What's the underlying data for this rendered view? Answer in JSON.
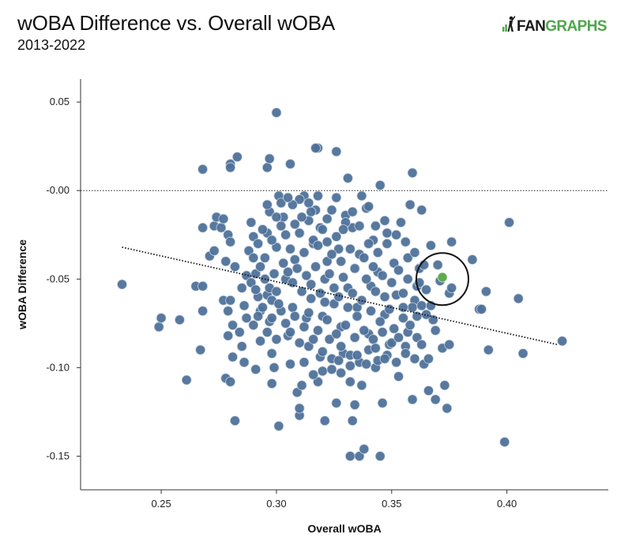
{
  "header": {
    "title": "wOBA Difference vs. Overall wOBA",
    "subtitle": "2013-2022",
    "logo_text_a": "FAN",
    "logo_text_b": "GRAPHS"
  },
  "colors": {
    "point": "#4f7199",
    "point_stroke": "#c9d6e4",
    "highlight": "#5eaa4f",
    "axis": "#333333",
    "logo_green": "#4ea64a"
  },
  "chart_data": {
    "type": "scatter",
    "title": "wOBA Difference vs. Overall wOBA",
    "subtitle": "2013-2022",
    "xlabel": "Overall wOBA",
    "ylabel": "wOBA Difference",
    "xlim": [
      0.215,
      0.444
    ],
    "ylim": [
      -0.169,
      0.063
    ],
    "x_ticks": [
      0.25,
      0.3,
      0.35,
      0.4
    ],
    "x_tick_labels": [
      "0.25",
      "0.30",
      "0.35",
      "0.40"
    ],
    "y_ticks": [
      0.05,
      0.0,
      -0.05,
      -0.1,
      -0.15
    ],
    "y_tick_labels": [
      "0.05",
      "-0.00",
      "-0.05",
      "-0.10",
      "-0.15"
    ],
    "reference_line_y": 0.0,
    "trend_line": {
      "x": [
        0.233,
        0.422
      ],
      "y": [
        -0.032,
        -0.087
      ]
    },
    "highlight_point": {
      "x": 0.372,
      "y": -0.049
    },
    "highlight_circle_center": {
      "x": 0.372,
      "y": -0.05
    },
    "grid": false,
    "points": [
      [
        0.3,
        0.044
      ],
      [
        0.318,
        0.024
      ],
      [
        0.317,
        0.024
      ],
      [
        0.326,
        0.022
      ],
      [
        0.268,
        0.012
      ],
      [
        0.28,
        0.015
      ],
      [
        0.28,
        0.013
      ],
      [
        0.283,
        0.019
      ],
      [
        0.296,
        0.013
      ],
      [
        0.306,
        0.015
      ],
      [
        0.297,
        0.018
      ],
      [
        0.359,
        0.01
      ],
      [
        0.331,
        0.007
      ],
      [
        0.233,
        -0.053
      ],
      [
        0.249,
        -0.077
      ],
      [
        0.25,
        -0.072
      ],
      [
        0.258,
        -0.073
      ],
      [
        0.261,
        -0.107
      ],
      [
        0.265,
        -0.054
      ],
      [
        0.268,
        -0.054
      ],
      [
        0.268,
        -0.068
      ],
      [
        0.267,
        -0.09
      ],
      [
        0.271,
        -0.037
      ],
      [
        0.273,
        -0.034
      ],
      [
        0.273,
        -0.02
      ],
      [
        0.268,
        -0.021
      ],
      [
        0.274,
        -0.015
      ],
      [
        0.276,
        -0.021
      ],
      [
        0.278,
        -0.04
      ],
      [
        0.277,
        -0.016
      ],
      [
        0.279,
        -0.025
      ],
      [
        0.28,
        -0.029
      ],
      [
        0.282,
        -0.043
      ],
      [
        0.277,
        -0.062
      ],
      [
        0.279,
        -0.068
      ],
      [
        0.28,
        -0.062
      ],
      [
        0.281,
        -0.076
      ],
      [
        0.279,
        -0.082
      ],
      [
        0.281,
        -0.094
      ],
      [
        0.278,
        -0.106
      ],
      [
        0.28,
        -0.108
      ],
      [
        0.282,
        -0.13
      ],
      [
        0.285,
        -0.088
      ],
      [
        0.286,
        -0.065
      ],
      [
        0.287,
        -0.048
      ],
      [
        0.288,
        -0.034
      ],
      [
        0.289,
        -0.018
      ],
      [
        0.29,
        -0.026
      ],
      [
        0.291,
        -0.047
      ],
      [
        0.292,
        -0.06
      ],
      [
        0.293,
        -0.068
      ],
      [
        0.293,
        -0.085
      ],
      [
        0.291,
        -0.101
      ],
      [
        0.295,
        -0.038
      ],
      [
        0.296,
        -0.024
      ],
      [
        0.297,
        -0.012
      ],
      [
        0.296,
        -0.059
      ],
      [
        0.297,
        -0.074
      ],
      [
        0.298,
        -0.092
      ],
      [
        0.299,
        -0.1
      ],
      [
        0.298,
        -0.109
      ],
      [
        0.299,
        -0.047
      ],
      [
        0.3,
        -0.032
      ],
      [
        0.301,
        -0.003
      ],
      [
        0.301,
        -0.133
      ],
      [
        0.303,
        -0.015
      ],
      [
        0.304,
        -0.05
      ],
      [
        0.305,
        -0.082
      ],
      [
        0.306,
        -0.098
      ],
      [
        0.307,
        -0.066
      ],
      [
        0.308,
        -0.039
      ],
      [
        0.309,
        -0.114
      ],
      [
        0.31,
        -0.127
      ],
      [
        0.31,
        -0.123
      ],
      [
        0.311,
        -0.11
      ],
      [
        0.312,
        -0.003
      ],
      [
        0.313,
        -0.072
      ],
      [
        0.314,
        -0.088
      ],
      [
        0.315,
        -0.053
      ],
      [
        0.316,
        -0.03
      ],
      [
        0.317,
        -0.011
      ],
      [
        0.318,
        -0.108
      ],
      [
        0.319,
        -0.021
      ],
      [
        0.319,
        -0.094
      ],
      [
        0.32,
        -0.071
      ],
      [
        0.321,
        -0.05
      ],
      [
        0.321,
        -0.13
      ],
      [
        0.322,
        -0.04
      ],
      [
        0.323,
        -0.084
      ],
      [
        0.324,
        -0.011
      ],
      [
        0.325,
        -0.064
      ],
      [
        0.326,
        -0.12
      ],
      [
        0.327,
        -0.033
      ],
      [
        0.328,
        -0.077
      ],
      [
        0.329,
        -0.092
      ],
      [
        0.33,
        -0.014
      ],
      [
        0.331,
        -0.055
      ],
      [
        0.332,
        -0.099
      ],
      [
        0.332,
        -0.15
      ],
      [
        0.333,
        -0.021
      ],
      [
        0.333,
        -0.13
      ],
      [
        0.334,
        -0.121
      ],
      [
        0.335,
        -0.066
      ],
      [
        0.336,
        -0.036
      ],
      [
        0.336,
        -0.15
      ],
      [
        0.337,
        -0.11
      ],
      [
        0.338,
        -0.146
      ],
      [
        0.339,
        -0.01
      ],
      [
        0.34,
        -0.081
      ],
      [
        0.341,
        -0.054
      ],
      [
        0.342,
        -0.028
      ],
      [
        0.343,
        -0.1
      ],
      [
        0.344,
        -0.046
      ],
      [
        0.345,
        0.003
      ],
      [
        0.345,
        -0.15
      ],
      [
        0.346,
        -0.12
      ],
      [
        0.347,
        -0.07
      ],
      [
        0.348,
        -0.03
      ],
      [
        0.349,
        -0.087
      ],
      [
        0.351,
        -0.041
      ],
      [
        0.352,
        -0.059
      ],
      [
        0.353,
        -0.105
      ],
      [
        0.354,
        -0.018
      ],
      [
        0.355,
        -0.072
      ],
      [
        0.356,
        -0.088
      ],
      [
        0.357,
        -0.05
      ],
      [
        0.358,
        -0.008
      ],
      [
        0.359,
        -0.118
      ],
      [
        0.36,
        -0.062
      ],
      [
        0.361,
        -0.083
      ],
      [
        0.362,
        -0.044
      ],
      [
        0.363,
        -0.011
      ],
      [
        0.364,
        -0.098
      ],
      [
        0.365,
        -0.056
      ],
      [
        0.366,
        -0.113
      ],
      [
        0.367,
        -0.031
      ],
      [
        0.368,
        -0.073
      ],
      [
        0.369,
        -0.118
      ],
      [
        0.37,
        -0.042
      ],
      [
        0.371,
        -0.051
      ],
      [
        0.372,
        -0.089
      ],
      [
        0.373,
        -0.11
      ],
      [
        0.374,
        -0.123
      ],
      [
        0.375,
        -0.087
      ],
      [
        0.375,
        -0.058
      ],
      [
        0.376,
        -0.055
      ],
      [
        0.376,
        -0.029
      ],
      [
        0.385,
        -0.039
      ],
      [
        0.388,
        -0.067
      ],
      [
        0.389,
        -0.067
      ],
      [
        0.391,
        -0.057
      ],
      [
        0.392,
        -0.09
      ],
      [
        0.399,
        -0.142
      ],
      [
        0.401,
        -0.018
      ],
      [
        0.405,
        -0.061
      ],
      [
        0.407,
        -0.092
      ],
      [
        0.424,
        -0.085
      ],
      [
        0.302,
        -0.02
      ],
      [
        0.304,
        -0.025
      ],
      [
        0.306,
        -0.033
      ],
      [
        0.308,
        -0.019
      ],
      [
        0.31,
        -0.024
      ],
      [
        0.312,
        -0.035
      ],
      [
        0.314,
        -0.017
      ],
      [
        0.316,
        -0.028
      ],
      [
        0.318,
        -0.031
      ],
      [
        0.32,
        -0.022
      ],
      [
        0.322,
        -0.029
      ],
      [
        0.324,
        -0.036
      ],
      [
        0.326,
        -0.026
      ],
      [
        0.328,
        -0.04
      ],
      [
        0.33,
        -0.018
      ],
      [
        0.332,
        -0.033
      ],
      [
        0.334,
        -0.044
      ],
      [
        0.336,
        -0.02
      ],
      [
        0.338,
        -0.038
      ],
      [
        0.34,
        -0.03
      ],
      [
        0.342,
        -0.043
      ],
      [
        0.344,
        -0.035
      ],
      [
        0.346,
        -0.048
      ],
      [
        0.348,
        -0.024
      ],
      [
        0.35,
        -0.052
      ],
      [
        0.303,
        -0.041
      ],
      [
        0.305,
        -0.046
      ],
      [
        0.307,
        -0.052
      ],
      [
        0.309,
        -0.044
      ],
      [
        0.311,
        -0.057
      ],
      [
        0.313,
        -0.048
      ],
      [
        0.315,
        -0.061
      ],
      [
        0.317,
        -0.043
      ],
      [
        0.319,
        -0.058
      ],
      [
        0.321,
        -0.063
      ],
      [
        0.323,
        -0.047
      ],
      [
        0.325,
        -0.055
      ],
      [
        0.327,
        -0.06
      ],
      [
        0.329,
        -0.049
      ],
      [
        0.331,
        -0.066
      ],
      [
        0.333,
        -0.058
      ],
      [
        0.335,
        -0.071
      ],
      [
        0.337,
        -0.062
      ],
      [
        0.339,
        -0.05
      ],
      [
        0.341,
        -0.068
      ],
      [
        0.343,
        -0.057
      ],
      [
        0.345,
        -0.074
      ],
      [
        0.347,
        -0.06
      ],
      [
        0.349,
        -0.067
      ],
      [
        0.351,
        -0.078
      ],
      [
        0.302,
        -0.068
      ],
      [
        0.304,
        -0.075
      ],
      [
        0.306,
        -0.08
      ],
      [
        0.308,
        -0.071
      ],
      [
        0.31,
        -0.086
      ],
      [
        0.312,
        -0.077
      ],
      [
        0.314,
        -0.069
      ],
      [
        0.316,
        -0.084
      ],
      [
        0.318,
        -0.079
      ],
      [
        0.32,
        -0.091
      ],
      [
        0.322,
        -0.073
      ],
      [
        0.324,
        -0.095
      ],
      [
        0.326,
        -0.081
      ],
      [
        0.328,
        -0.088
      ],
      [
        0.33,
        -0.076
      ],
      [
        0.332,
        -0.093
      ],
      [
        0.334,
        -0.083
      ],
      [
        0.336,
        -0.097
      ],
      [
        0.338,
        -0.079
      ],
      [
        0.34,
        -0.09
      ],
      [
        0.342,
        -0.084
      ],
      [
        0.344,
        -0.096
      ],
      [
        0.346,
        -0.08
      ],
      [
        0.348,
        -0.093
      ],
      [
        0.35,
        -0.086
      ],
      [
        0.289,
        -0.052
      ],
      [
        0.291,
        -0.056
      ],
      [
        0.293,
        -0.043
      ],
      [
        0.295,
        -0.05
      ],
      [
        0.297,
        -0.055
      ],
      [
        0.298,
        -0.062
      ],
      [
        0.3,
        -0.057
      ],
      [
        0.301,
        -0.064
      ],
      [
        0.29,
        -0.076
      ],
      [
        0.292,
        -0.071
      ],
      [
        0.294,
        -0.066
      ],
      [
        0.296,
        -0.08
      ],
      [
        0.298,
        -0.072
      ],
      [
        0.3,
        -0.084
      ],
      [
        0.29,
        -0.038
      ],
      [
        0.292,
        -0.03
      ],
      [
        0.294,
        -0.022
      ],
      [
        0.296,
        -0.008
      ],
      [
        0.298,
        -0.028
      ],
      [
        0.3,
        -0.015
      ],
      [
        0.302,
        -0.007
      ],
      [
        0.285,
        -0.055
      ],
      [
        0.287,
        -0.072
      ],
      [
        0.284,
        -0.08
      ],
      [
        0.286,
        -0.097
      ],
      [
        0.31,
        -0.005
      ],
      [
        0.314,
        -0.007
      ],
      [
        0.318,
        -0.003
      ],
      [
        0.322,
        -0.016
      ],
      [
        0.326,
        -0.004
      ],
      [
        0.315,
        -0.012
      ],
      [
        0.311,
        -0.015
      ],
      [
        0.307,
        -0.008
      ],
      [
        0.305,
        -0.004
      ],
      [
        0.32,
        -0.102
      ],
      [
        0.316,
        -0.104
      ],
      [
        0.312,
        -0.097
      ],
      [
        0.324,
        -0.101
      ],
      [
        0.328,
        -0.103
      ],
      [
        0.332,
        -0.108
      ],
      [
        0.327,
        -0.096
      ],
      [
        0.335,
        -0.093
      ],
      [
        0.339,
        -0.098
      ],
      [
        0.343,
        -0.089
      ],
      [
        0.347,
        -0.095
      ],
      [
        0.352,
        -0.097
      ],
      [
        0.356,
        -0.092
      ],
      [
        0.36,
        -0.095
      ],
      [
        0.363,
        -0.087
      ],
      [
        0.366,
        -0.095
      ],
      [
        0.353,
        -0.045
      ],
      [
        0.355,
        -0.058
      ],
      [
        0.357,
        -0.038
      ],
      [
        0.359,
        -0.066
      ],
      [
        0.361,
        -0.054
      ],
      [
        0.363,
        -0.065
      ],
      [
        0.365,
        -0.07
      ],
      [
        0.367,
        -0.065
      ],
      [
        0.369,
        -0.079
      ],
      [
        0.361,
        -0.071
      ],
      [
        0.357,
        -0.08
      ],
      [
        0.355,
        -0.066
      ],
      [
        0.353,
        -0.083
      ],
      [
        0.358,
        -0.076
      ],
      [
        0.362,
        -0.052
      ],
      [
        0.364,
        -0.042
      ],
      [
        0.36,
        -0.035
      ],
      [
        0.356,
        -0.029
      ],
      [
        0.352,
        -0.025
      ],
      [
        0.347,
        -0.017
      ],
      [
        0.343,
        -0.02
      ],
      [
        0.34,
        -0.009
      ],
      [
        0.337,
        -0.003
      ],
      [
        0.333,
        -0.012
      ],
      [
        0.329,
        -0.022
      ]
    ]
  }
}
